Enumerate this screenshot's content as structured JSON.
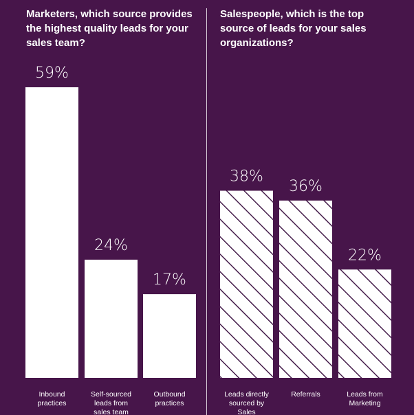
{
  "chart_data": [
    {
      "type": "bar",
      "title": "Marketers, which source provides the highest quality leads for your sales team?",
      "categories": [
        "Inbound\npractices",
        "Self-sourced\nleads from\nsales team",
        "Outbound\npractices"
      ],
      "values": [
        59,
        24,
        17
      ],
      "value_labels": [
        "59%",
        "24%",
        "17%"
      ],
      "ylim": [
        0,
        59
      ],
      "grid": false,
      "fill": "solid",
      "bar_color": "#ffffff"
    },
    {
      "type": "bar",
      "title": "Salespeople, which is the top source of leads for your sales organizations?",
      "categories": [
        "Leads directly\nsourced by\nSales",
        "Referrals",
        "Leads from\nMarketing"
      ],
      "values": [
        38,
        36,
        22
      ],
      "value_labels": [
        "38%",
        "36%",
        "22%"
      ],
      "ylim": [
        0,
        59
      ],
      "grid": false,
      "fill": "hatched",
      "bar_color": "#ffffff",
      "hatch_color": "#3a1040"
    }
  ],
  "colors": {
    "background": "#47154a",
    "divider": "#d8cbd9",
    "text": "#ffffff"
  }
}
